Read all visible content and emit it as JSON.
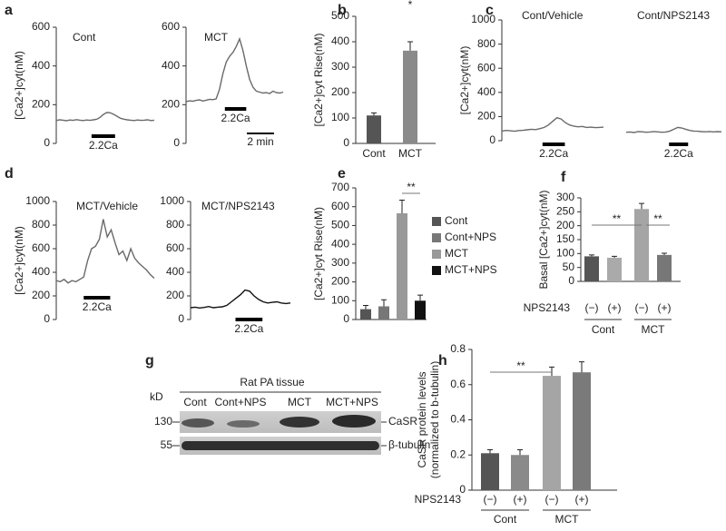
{
  "chart_data": [
    {
      "type": "line",
      "panel": "a",
      "label": "Cont",
      "color": "#6a6a6a",
      "y_label": "[Ca2+]cyt(nM)",
      "ylim": [
        0,
        600
      ],
      "yticks": [
        0,
        200,
        400,
        600
      ],
      "annotation": "2.2Ca",
      "values": [
        118,
        122,
        120,
        117,
        121,
        119,
        123,
        120,
        118,
        121,
        119,
        122,
        125,
        135,
        150,
        160,
        158,
        150,
        140,
        130,
        125,
        122,
        120,
        118,
        121,
        119,
        120,
        122,
        118,
        120
      ]
    },
    {
      "type": "line",
      "label": "MCT",
      "color": "#6a6a6a",
      "ylim": [
        0,
        600
      ],
      "yticks": [
        0,
        200,
        400,
        600
      ],
      "annotation": "2.2Ca",
      "scale_label": "2 min",
      "values": [
        215,
        220,
        218,
        222,
        225,
        219,
        223,
        228,
        226,
        230,
        280,
        360,
        420,
        450,
        470,
        500,
        540,
        480,
        400,
        330,
        290,
        270,
        265,
        260,
        262,
        258,
        270,
        262,
        260,
        265
      ]
    },
    {
      "type": "bar",
      "panel": "b",
      "y_label": "[Ca2+]cyt Rise(nM)",
      "ylim": [
        0,
        500
      ],
      "yticks": [
        0,
        100,
        200,
        300,
        400,
        500
      ],
      "categories": [
        "Cont",
        "MCT"
      ],
      "values": [
        110,
        365
      ],
      "errors": [
        10,
        35
      ],
      "colors": [
        "#555555",
        "#8a8a8a"
      ],
      "annotations": [
        "*"
      ]
    },
    {
      "type": "line",
      "panel": "c",
      "label": "Cont/Vehicle",
      "color": "#6a6a6a",
      "y_label": "[Ca2+]cyt(nM)",
      "ylim": [
        0,
        1000
      ],
      "yticks": [
        0,
        200,
        400,
        600,
        800,
        1000
      ],
      "annotation": "2.2Ca",
      "values": [
        80,
        85,
        82,
        78,
        84,
        86,
        90,
        95,
        92,
        100,
        110,
        130,
        160,
        190,
        180,
        150,
        130,
        120,
        115,
        118,
        110,
        112,
        108,
        110,
        112
      ]
    },
    {
      "type": "line",
      "label": "Cont/NPS2143",
      "color": "#6a6a6a",
      "ylim": [
        0,
        1000
      ],
      "annotation": "2.2Ca",
      "values": [
        70,
        72,
        68,
        75,
        74,
        70,
        72,
        76,
        73,
        70,
        72,
        80,
        95,
        110,
        105,
        95,
        85,
        80,
        78,
        75,
        74,
        76,
        73,
        75,
        74
      ]
    },
    {
      "type": "line",
      "panel": "d",
      "label": "MCT/Vehicle",
      "color": "#6a6a6a",
      "y_label": "[Ca2+]cyt(nM)",
      "ylim": [
        0,
        1000
      ],
      "yticks": [
        0,
        200,
        400,
        600,
        800,
        1000
      ],
      "annotation": "2.2Ca",
      "values": [
        330,
        320,
        340,
        310,
        330,
        320,
        340,
        360,
        500,
        600,
        620,
        680,
        850,
        700,
        760,
        650,
        550,
        580,
        500,
        600,
        520,
        480,
        450,
        420,
        380,
        350
      ]
    },
    {
      "type": "line",
      "label": "MCT/NPS2143",
      "color": "#111111",
      "ylim": [
        0,
        1000
      ],
      "yticks": [
        0,
        200,
        400,
        600,
        800,
        1000
      ],
      "annotation": "2.2Ca",
      "values": [
        100,
        105,
        98,
        102,
        110,
        100,
        105,
        108,
        120,
        150,
        180,
        210,
        250,
        240,
        200,
        170,
        150,
        140,
        145,
        150,
        140,
        135,
        140
      ]
    },
    {
      "type": "bar",
      "panel": "e",
      "y_label": "[Ca2+]cyt Rise(nM)",
      "ylim": [
        0,
        700
      ],
      "yticks": [
        0,
        100,
        200,
        300,
        400,
        500,
        600,
        700
      ],
      "categories": [
        null
      ],
      "annotations": [
        "**"
      ],
      "series": [
        {
          "name": "Cont",
          "color": "#555555",
          "values": [
            55
          ],
          "errors": [
            20
          ]
        },
        {
          "name": "Cont+NPS",
          "color": "#777777",
          "values": [
            70
          ],
          "errors": [
            35
          ]
        },
        {
          "name": "MCT",
          "color": "#999999",
          "values": [
            565
          ],
          "errors": [
            70
          ]
        },
        {
          "name": "MCT+NPS",
          "color": "#111111",
          "values": [
            100
          ],
          "errors": [
            30
          ]
        }
      ]
    },
    {
      "type": "bar",
      "panel": "f",
      "y_label": "Basal [Ca2+]cyt(nM)",
      "ylim": [
        0,
        300
      ],
      "yticks": [
        0,
        50,
        100,
        150,
        200,
        250,
        300
      ],
      "x_label": "NPS2143",
      "categories": [
        "(−)",
        "(+)",
        "(−)",
        "(+)"
      ],
      "groups": [
        "Cont",
        "MCT"
      ],
      "values": [
        90,
        85,
        260,
        95
      ],
      "errors": [
        5,
        5,
        20,
        6
      ],
      "colors": [
        "#555555",
        "#aaaaaa",
        "#a5a5a5",
        "#777777"
      ],
      "annotations": [
        "**",
        "**"
      ]
    },
    {
      "type": "bar",
      "panel": "h",
      "y_label": [
        "CaSR protein levels",
        "(normalized to b-tubulin)"
      ],
      "ylim": [
        0,
        0.8
      ],
      "yticks": [
        0,
        0.2,
        0.4,
        0.6,
        0.8
      ],
      "x_label": "NPS2143",
      "categories": [
        "(−)",
        "(+)",
        "(−)",
        "(+)"
      ],
      "groups": [
        "Cont",
        "MCT"
      ],
      "values": [
        0.21,
        0.2,
        0.65,
        0.67
      ],
      "errors": [
        0.02,
        0.03,
        0.05,
        0.06
      ],
      "colors": [
        "#555555",
        "#8a8a8a",
        "#a5a5a5",
        "#7a7a7a"
      ],
      "annotations": [
        "**"
      ]
    }
  ],
  "blot": {
    "panel": "g",
    "title": "Rat PA tissue",
    "unit": "kD",
    "lanes": [
      "Cont",
      "Cont+NPS",
      "MCT",
      "MCT+NPS"
    ],
    "markers": [
      "130",
      "55"
    ],
    "bands": [
      "CaSR",
      "β-tubulin"
    ]
  }
}
